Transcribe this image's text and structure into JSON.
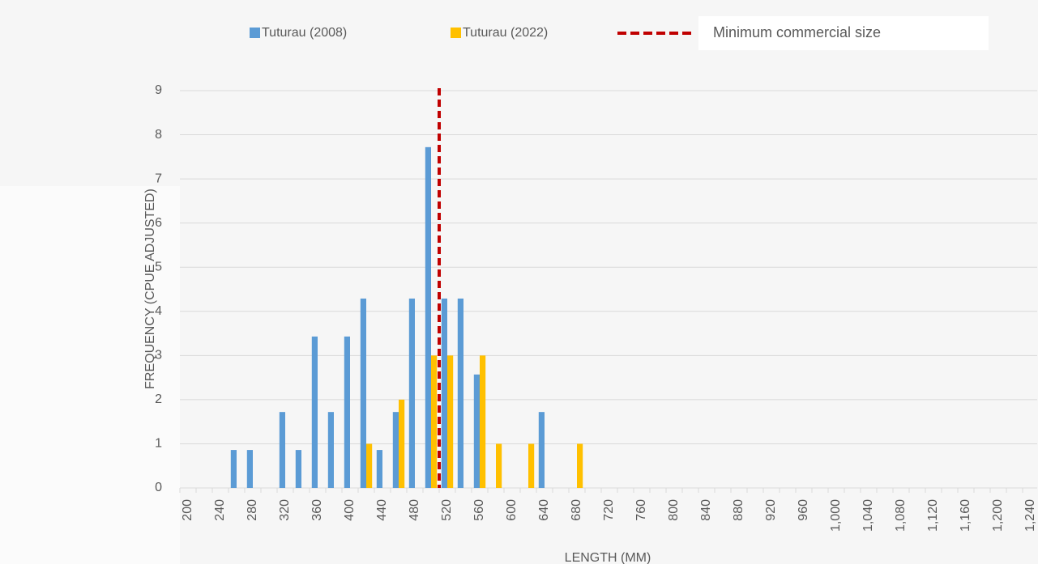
{
  "chart_data": {
    "type": "bar",
    "x_label": "LENGTH (MM)",
    "y_label": "FREQUENCY (CPUE ADJUSTED)",
    "categories": [
      "200",
      null,
      "240",
      null,
      "280",
      null,
      "320",
      null,
      "360",
      null,
      "400",
      null,
      "440",
      null,
      "480",
      null,
      "520",
      null,
      "560",
      null,
      "600",
      null,
      "640",
      null,
      "680",
      null,
      "720",
      null,
      "760",
      null,
      "800",
      null,
      "840",
      null,
      "880",
      null,
      "920",
      null,
      "960",
      null,
      "1,000",
      null,
      "1,040",
      null,
      "1,080",
      null,
      "1,120",
      null,
      "1,160",
      null,
      "1,200",
      null,
      "1,240"
    ],
    "series": [
      {
        "name": "Tuturau (2008)",
        "color": "#5b9bd5",
        "values": [
          null,
          null,
          null,
          0.86,
          0.86,
          null,
          1.72,
          0.86,
          3.43,
          1.72,
          3.43,
          4.29,
          0.86,
          1.72,
          4.29,
          7.72,
          4.29,
          4.29,
          2.57,
          null,
          null,
          null,
          1.72,
          null,
          null,
          null,
          null,
          null,
          null,
          null,
          null,
          null,
          null,
          null,
          null,
          null,
          null,
          null,
          null,
          null,
          null,
          null,
          null,
          null,
          null,
          null,
          null,
          null,
          null,
          null,
          null,
          null,
          null
        ]
      },
      {
        "name": "Tuturau (2022)",
        "color": "#ffc000",
        "values": [
          null,
          null,
          null,
          null,
          null,
          null,
          null,
          null,
          null,
          null,
          null,
          1,
          null,
          2,
          null,
          3,
          3,
          null,
          3,
          1,
          null,
          1,
          null,
          null,
          1,
          null,
          null,
          null,
          null,
          null,
          null,
          null,
          null,
          null,
          null,
          null,
          null,
          null,
          null,
          null,
          null,
          null,
          null,
          null,
          null,
          null,
          null,
          null,
          null,
          null,
          null,
          null,
          null
        ]
      }
    ],
    "reference_line": {
      "name": "Minimum commercial size",
      "x": 510,
      "color": "#c00000"
    },
    "xlim": [
      190,
      1250
    ],
    "ylim": [
      0,
      9
    ],
    "yticks": [
      0,
      1,
      2,
      3,
      4,
      5,
      6,
      7,
      8,
      9
    ],
    "grid": true
  }
}
